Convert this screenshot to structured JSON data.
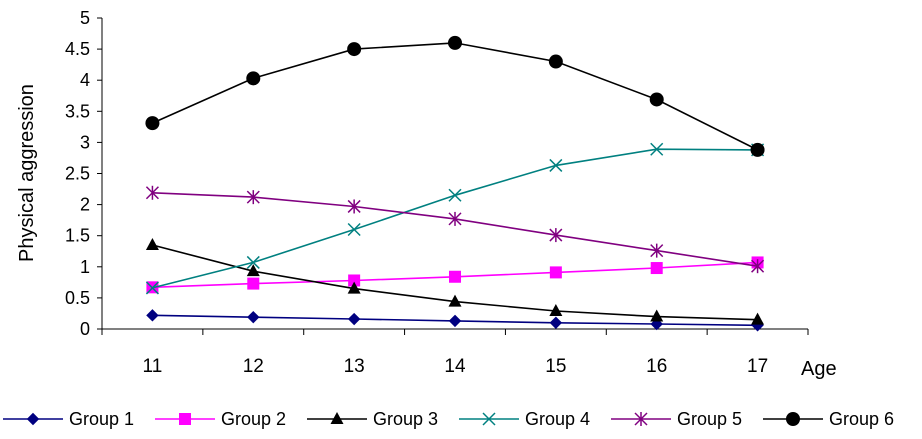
{
  "chart_data": {
    "type": "line",
    "title": "",
    "xlabel": "Age",
    "ylabel": "Physical aggression",
    "x": [
      11,
      12,
      13,
      14,
      15,
      16,
      17
    ],
    "xlim": [
      10.5,
      17.5
    ],
    "ylim": [
      0,
      5
    ],
    "yticks": [
      "0",
      "0.5",
      "1",
      "1.5",
      "2",
      "2.5",
      "3",
      "3.5",
      "4",
      "4.5",
      "5"
    ],
    "ytick_values": [
      0,
      0.5,
      1,
      1.5,
      2,
      2.5,
      3,
      3.5,
      4,
      4.5,
      5
    ],
    "grid": false,
    "legend_position": "bottom",
    "series": [
      {
        "name": "Group 1",
        "color": "#000080",
        "marker": "diamond",
        "values": [
          0.22,
          0.19,
          0.16,
          0.13,
          0.1,
          0.08,
          0.06
        ]
      },
      {
        "name": "Group 2",
        "color": "#FF00FF",
        "marker": "square",
        "values": [
          0.67,
          0.73,
          0.78,
          0.84,
          0.91,
          0.98,
          1.07
        ]
      },
      {
        "name": "Group 3",
        "color": "#000000",
        "marker": "triangle",
        "values": [
          1.35,
          0.93,
          0.65,
          0.44,
          0.29,
          0.2,
          0.15
        ]
      },
      {
        "name": "Group 4",
        "color": "#008080",
        "marker": "x",
        "values": [
          0.66,
          1.07,
          1.6,
          2.15,
          2.63,
          2.89,
          2.88
        ]
      },
      {
        "name": "Group 5",
        "color": "#800080",
        "marker": "asterisk",
        "values": [
          2.19,
          2.12,
          1.97,
          1.77,
          1.51,
          1.26,
          1.01
        ]
      },
      {
        "name": "Group 6",
        "color": "#000000",
        "marker": "circle",
        "values": [
          3.31,
          4.03,
          4.5,
          4.6,
          4.3,
          3.69,
          2.88
        ]
      }
    ]
  }
}
